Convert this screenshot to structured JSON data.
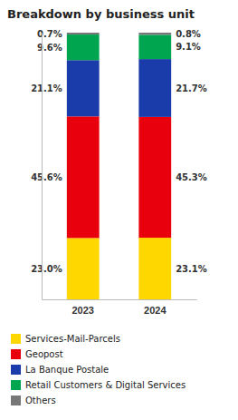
{
  "chart_data": {
    "type": "bar",
    "title": "Breakdown by business unit",
    "categories": [
      "2023",
      "2024"
    ],
    "stacked": true,
    "data_labels": true,
    "legend": "bottom",
    "tick_labels": "x",
    "ylim": [
      0,
      100
    ],
    "series": [
      {
        "name": "Services-Mail-Parcels",
        "color": "#FFD700",
        "values": [
          23.0,
          23.1
        ],
        "value_labels": [
          "23.0%",
          "23.1%"
        ]
      },
      {
        "name": "Geopost",
        "color": "#E8000D",
        "values": [
          45.6,
          45.3
        ],
        "value_labels": [
          "45.6%",
          "45.3%"
        ]
      },
      {
        "name": "La Banque Postale",
        "color": "#1a3caa",
        "values": [
          21.1,
          21.7
        ],
        "value_labels": [
          "21.1%",
          "21.7%"
        ]
      },
      {
        "name": "Retail Customers & Digital Services",
        "color": "#00a550",
        "values": [
          9.6,
          9.1
        ],
        "value_labels": [
          "9.6%",
          "9.1%"
        ]
      },
      {
        "name": "Others",
        "color": "#777777",
        "values": [
          0.7,
          0.8
        ],
        "value_labels": [
          "0.7%",
          "0.8%"
        ]
      }
    ]
  }
}
